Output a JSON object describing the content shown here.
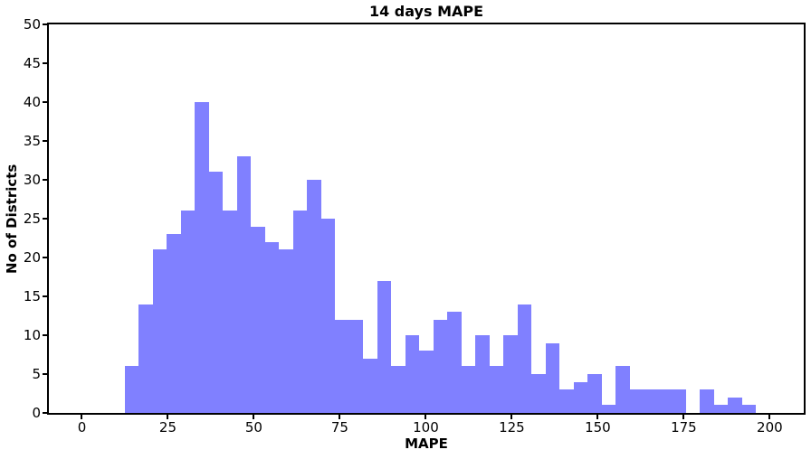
{
  "figure": {
    "title": "14 days MAPE",
    "xlabel": "MAPE",
    "ylabel": "No of Districts"
  },
  "chart_data": {
    "type": "bar",
    "subtype": "histogram",
    "title": "14 days MAPE",
    "xlabel": "MAPE",
    "ylabel": "No of Districts",
    "bin_start": 12.4,
    "bin_width": 4.08,
    "bin_count": 45,
    "values": [
      6,
      14,
      21,
      23,
      26,
      40,
      31,
      26,
      33,
      24,
      22,
      21,
      26,
      30,
      25,
      12,
      12,
      7,
      17,
      6,
      10,
      8,
      12,
      13,
      6,
      10,
      6,
      10,
      14,
      5,
      9,
      3,
      4,
      5,
      1,
      6,
      3,
      3,
      3,
      3,
      0,
      3,
      1,
      2,
      1
    ],
    "x_ticks": [
      0,
      25,
      50,
      75,
      100,
      125,
      150,
      175,
      200
    ],
    "y_ticks": [
      0,
      5,
      10,
      15,
      20,
      25,
      30,
      35,
      40,
      45,
      50
    ],
    "xlim": [
      -9.6,
      209.9
    ],
    "ylim": [
      0,
      50
    ],
    "bar_color": "#8080ff",
    "axis_color": "#000000",
    "grid": false,
    "legend": null
  }
}
